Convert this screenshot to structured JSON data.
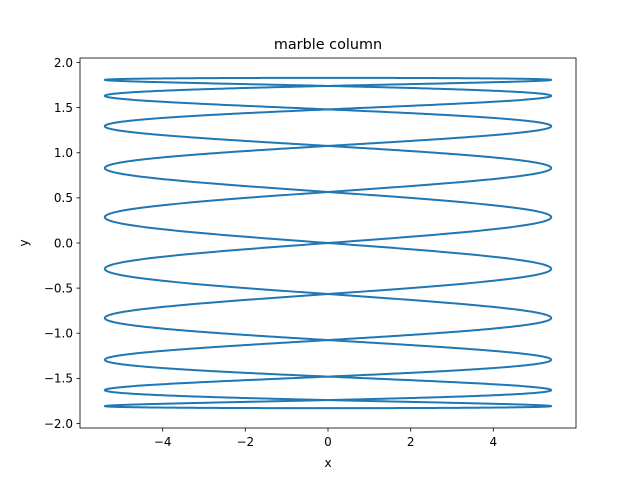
{
  "chart_data": {
    "type": "line",
    "title": "marble column",
    "xlabel": "x",
    "ylabel": "y",
    "xlim": [
      -6.0,
      6.0
    ],
    "ylim": [
      -2.05,
      2.05
    ],
    "x_ticks": [
      -4,
      -2,
      0,
      2,
      4
    ],
    "x_tick_labels": [
      "−4",
      "−2",
      "0",
      "2",
      "4"
    ],
    "y_ticks": [
      -2.0,
      -1.5,
      -1.0,
      -0.5,
      0.0,
      0.5,
      1.0,
      1.5,
      2.0
    ],
    "y_tick_labels": [
      "−2.0",
      "−1.5",
      "−1.0",
      "−0.5",
      "0.0",
      "0.5",
      "1.0",
      "1.5",
      "2.0"
    ],
    "grid": false,
    "legend": "none",
    "series": [
      {
        "color": "#1f77b4",
        "curve": "lissajous",
        "x_amplitude": 5.4,
        "x_frequency": 10,
        "y_amplitude": 1.83,
        "y_frequency": 1,
        "phase": 0
      }
    ]
  }
}
